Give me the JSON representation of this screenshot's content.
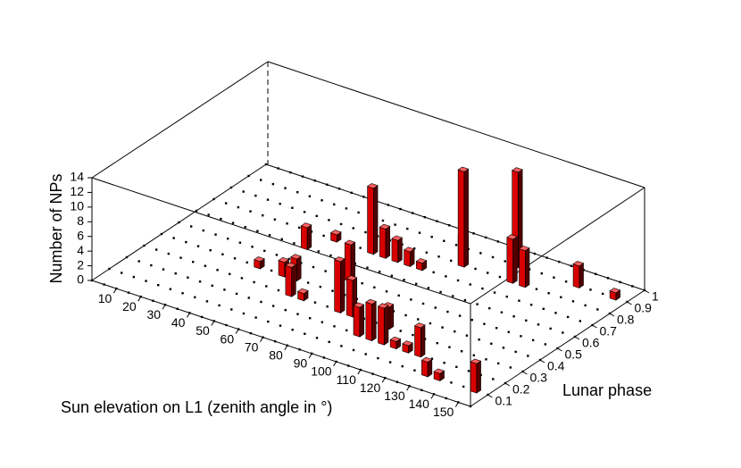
{
  "chart_data": {
    "type": "bar3d",
    "xlabel": "Sun elevation on L1 (zenith angle in °)",
    "ylabel": "Lunar phase",
    "zlabel": "Number of NPs",
    "color": "#c00000",
    "x": [
      40,
      50,
      60,
      45,
      50,
      80,
      70,
      65,
      70,
      75,
      80,
      85,
      95,
      65,
      95,
      95,
      100,
      105,
      100,
      110,
      115,
      120,
      130,
      135,
      150,
      95,
      110,
      115,
      120,
      135,
      150,
      85,
      55
    ],
    "y": [
      0.4,
      0.4,
      0.3,
      0.6,
      0.7,
      0.3,
      0.5,
      0.7,
      0.7,
      0.7,
      0.7,
      0.7,
      0.8,
      0.3,
      0.2,
      0.2,
      0.2,
      0.2,
      0.3,
      0.2,
      0.2,
      0.2,
      0.1,
      0.1,
      0.1,
      0.8,
      0.9,
      0.8,
      0.8,
      0.9,
      0.9,
      0.3,
      0.4
    ],
    "values": [
      1,
      2,
      4,
      3,
      1,
      7,
      5,
      9,
      4,
      3,
      2,
      1,
      4,
      1,
      3,
      4,
      5,
      5,
      3,
      1,
      1,
      4,
      2,
      1,
      4,
      13,
      13,
      6,
      5,
      3,
      1,
      5,
      3
    ],
    "xlim": [
      0,
      155
    ],
    "ylim": [
      0,
      1
    ],
    "zlim": [
      0,
      14
    ],
    "xticks": [
      10,
      20,
      30,
      40,
      50,
      60,
      70,
      80,
      90,
      100,
      110,
      120,
      130,
      140,
      150
    ],
    "yticks": [
      0.1,
      0.2,
      0.3,
      0.4,
      0.5,
      0.6,
      0.7,
      0.8,
      0.9,
      1
    ],
    "zticks": [
      0,
      2,
      4,
      6,
      8,
      10,
      12,
      14
    ]
  }
}
